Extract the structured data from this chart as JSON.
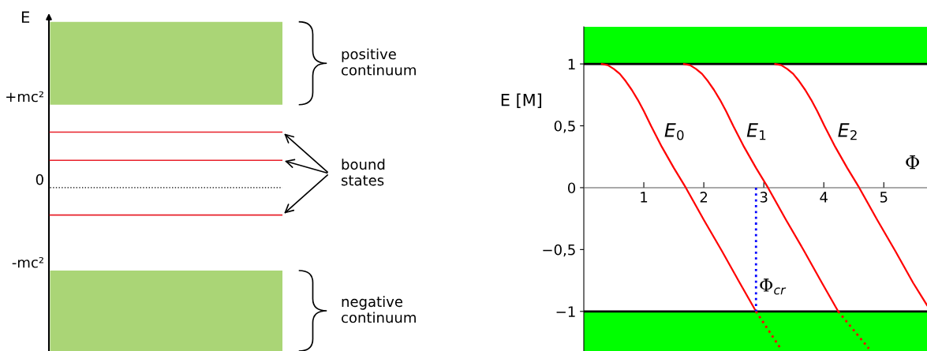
{
  "chart_data": [
    {
      "type": "other",
      "ylabel": "E",
      "annotations": [
        "+mc²",
        "0",
        "-mc²",
        "positive\ncontinuum",
        "bound\nstates",
        "negative\ncontinuum"
      ]
    },
    {
      "type": "line",
      "xlabel": "Φ",
      "ylabel": "E [M]",
      "xlim": [
        0,
        5.72
      ],
      "ylim": [
        -1.32,
        1.3
      ],
      "xticks": [
        1,
        2,
        3,
        4,
        5
      ],
      "yticks": [
        {
          "value": -1,
          "label": "−1"
        },
        {
          "value": -0.5,
          "label": "−0,5"
        },
        0,
        {
          "value": 0.5,
          "label": "0,5"
        },
        1
      ],
      "line_style": "solid",
      "series": [
        {
          "name": "E$_{0}$",
          "color": "#ff0000",
          "x": [
            0.3,
            0.4,
            0.5,
            0.6,
            0.7,
            0.8,
            0.9,
            1.0,
            1.12,
            1.3,
            1.5,
            1.7,
            2.0,
            2.3,
            2.6,
            2.87
          ],
          "values": [
            1,
            0.99,
            0.96,
            0.92,
            0.86,
            0.79,
            0.71,
            0.62,
            0.5,
            0.33,
            0.16,
            0,
            -0.26,
            -0.51,
            -0.77,
            -1
          ]
        },
        {
          "name": "E$_{1}$",
          "color": "#ff0000",
          "x": [
            1.67,
            1.77,
            1.87,
            1.97,
            2.07,
            2.17,
            2.27,
            2.37,
            2.49,
            2.67,
            2.87,
            3.07,
            3.37,
            3.67,
            3.97,
            4.24
          ],
          "values": [
            1,
            0.99,
            0.96,
            0.92,
            0.86,
            0.79,
            0.71,
            0.62,
            0.5,
            0.33,
            0.16,
            0,
            -0.26,
            -0.51,
            -0.77,
            -1
          ]
        },
        {
          "name": "E$_{2}$",
          "color": "#ff0000",
          "x": [
            3.19,
            3.29,
            3.39,
            3.49,
            3.59,
            3.69,
            3.79,
            3.89,
            4.01,
            4.19,
            4.39,
            4.59,
            4.89,
            5.19,
            5.49,
            5.72
          ],
          "values": [
            1,
            0.99,
            0.96,
            0.92,
            0.86,
            0.79,
            0.71,
            0.62,
            0.5,
            0.33,
            0.16,
            0,
            -0.26,
            -0.51,
            -0.77,
            -0.95
          ]
        },
        {
          "color": "#ff0000",
          "line_style": "dotted",
          "x": [
            2.87,
            3.28
          ],
          "values": [
            -1,
            -1.3
          ]
        },
        {
          "color": "#ff0000",
          "line_style": "dotted",
          "x": [
            4.24,
            4.75
          ],
          "values": [
            -1,
            -1.3
          ]
        },
        {
          "color": "#0000ff",
          "line_style": "dotted",
          "x": [
            2.87,
            2.87
          ],
          "values": [
            0,
            -1
          ]
        }
      ],
      "bands": [
        {
          "axis": "y",
          "from": 1,
          "to": 1.3,
          "color": "#00ff00"
        },
        {
          "axis": "y",
          "from": -1.32,
          "to": -1,
          "color": "#00ff00"
        }
      ],
      "ref_lines": [
        {
          "axis": "y",
          "value": 1,
          "color": "#000000"
        },
        {
          "axis": "y",
          "value": -1,
          "color": "#000000"
        }
      ],
      "annotations": [
        {
          "text": "Φ$_{cr}$",
          "x": 2.87,
          "y": -0.8
        }
      ]
    }
  ]
}
